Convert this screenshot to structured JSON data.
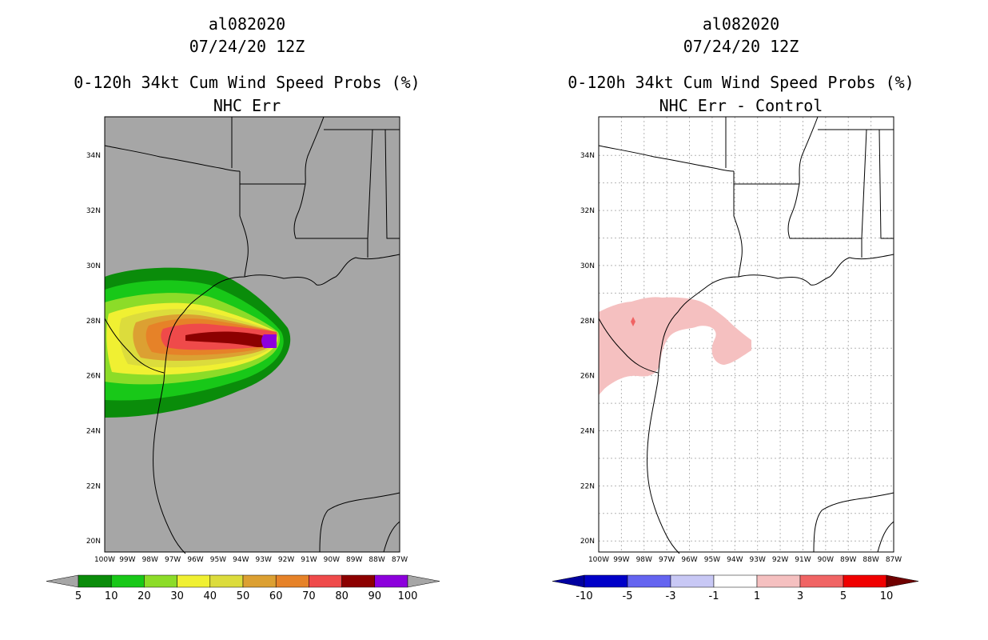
{
  "panels": [
    {
      "storm_id": "al082020",
      "datetime": "07/24/20 12Z",
      "product": "0-120h 34kt Cum Wind Speed Probs (%)",
      "subtitle": "NHC Err",
      "colorbar": {
        "labels": [
          "5",
          "10",
          "20",
          "30",
          "40",
          "50",
          "60",
          "70",
          "80",
          "90",
          "100"
        ],
        "colors": [
          "#0a8c0a",
          "#18c818",
          "#8cdc28",
          "#f0f032",
          "#dcdc3c",
          "#dca032",
          "#e68228",
          "#ef4a4a",
          "#8c0000",
          "#8c00dc"
        ],
        "under_color": "#a6a6a6",
        "over_color": "#a6a6a6"
      }
    },
    {
      "storm_id": "al082020",
      "datetime": "07/24/20 12Z",
      "product": "0-120h 34kt Cum Wind Speed Probs (%)",
      "subtitle": "NHC Err - Control",
      "colorbar": {
        "labels": [
          "-10",
          "-5",
          "-3",
          "-1",
          "1",
          "3",
          "5",
          "10"
        ],
        "colors": [
          "#0000c8",
          "#6464f0",
          "#c8c8f5",
          "#ffffff",
          "#f5c0c0",
          "#f06464",
          "#f00000"
        ],
        "under_color": "#0000a0",
        "over_color": "#700000"
      }
    }
  ],
  "map": {
    "lon_labels": [
      "100W",
      "99W",
      "98W",
      "97W",
      "96W",
      "95W",
      "94W",
      "93W",
      "92W",
      "91W",
      "90W",
      "89W",
      "88W",
      "87W"
    ],
    "lat_labels": [
      "20N",
      "22N",
      "24N",
      "26N",
      "28N",
      "30N",
      "32N",
      "34N"
    ],
    "land_color_left": "#a6a6a6",
    "land_color_right": "#ffffff"
  }
}
